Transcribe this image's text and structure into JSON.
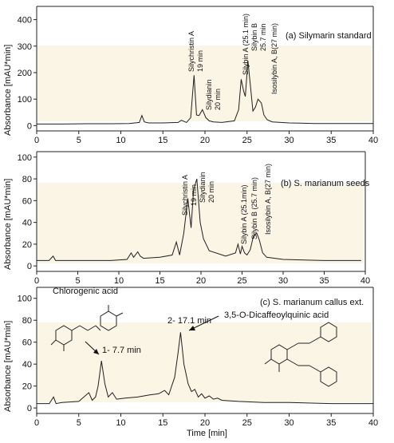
{
  "chart_data": [
    {
      "type": "line",
      "title": "(a) Silymarin standard",
      "ylabel": "Absorbance [mAU*min]",
      "xlabel": "",
      "xlim": [
        0,
        40
      ],
      "ylim": [
        -20,
        450
      ],
      "yticks": [
        0,
        100,
        200,
        300,
        400
      ],
      "xticks": [
        0,
        5,
        10,
        15,
        20,
        25,
        30,
        35,
        40
      ],
      "grid": false,
      "series": [
        {
          "x": [
            0,
            3,
            6,
            9,
            11,
            12.2,
            12.5,
            12.8,
            13.3,
            15,
            16.8,
            17.2,
            17.8,
            18.3,
            18.7,
            19.0,
            19.3,
            19.7,
            20.1,
            20.5,
            21,
            22,
            23.5,
            24.0,
            24.3,
            24.6,
            24.8,
            25.1,
            25.4,
            25.7,
            26.0,
            26.3,
            26.7,
            27.0,
            27.4,
            28,
            30,
            33,
            36,
            40
          ],
          "y": [
            6,
            6,
            7,
            7,
            8,
            12,
            38,
            14,
            10,
            10,
            12,
            20,
            12,
            30,
            190,
            40,
            38,
            60,
            30,
            18,
            14,
            12,
            18,
            60,
            175,
            130,
            110,
            245,
            150,
            55,
            70,
            100,
            85,
            40,
            22,
            14,
            10,
            8,
            8,
            8
          ]
        }
      ],
      "annotations": [
        "Silychristin A",
        "19 min",
        "Silydianin",
        "20 min",
        "Silybin A (25.1 min)",
        "Silybin B",
        "25.7 min",
        "Isosilybin A, B(27 min)"
      ]
    },
    {
      "type": "line",
      "title": "(b) S. marianum seeds",
      "ylabel": "Absorbance [mAU*min]",
      "xlabel": "",
      "xlim": [
        0,
        40
      ],
      "ylim": [
        -5,
        105
      ],
      "yticks": [
        0,
        20,
        40,
        60,
        80,
        100
      ],
      "xticks": [
        0,
        5,
        10,
        15,
        20,
        25,
        30,
        35,
        40
      ],
      "grid": false,
      "series": [
        {
          "x": [
            0,
            1,
            1.5,
            2.0,
            2.3,
            3,
            6,
            9,
            11,
            11.5,
            11.8,
            12.3,
            12.6,
            13,
            15,
            16.5,
            17.0,
            17.4,
            17.9,
            18.4,
            18.8,
            19.1,
            19.5,
            19.9,
            20.3,
            21,
            23,
            24.2,
            24.5,
            24.8,
            25.0,
            25.3,
            25.6,
            26.0,
            26.4,
            26.8,
            27.1,
            27.5,
            28,
            30,
            35,
            39.5
          ],
          "y": [
            5,
            5,
            5,
            9,
            5,
            5,
            5,
            5,
            6,
            12,
            8,
            13,
            9,
            7,
            8,
            10,
            22,
            10,
            30,
            62,
            35,
            70,
            80,
            40,
            25,
            14,
            9,
            12,
            20,
            11,
            18,
            12,
            10,
            15,
            28,
            30,
            24,
            12,
            8,
            6,
            5,
            5
          ]
        }
      ],
      "annotations": [
        "Silychristin A",
        "19 min",
        "Silydianin",
        "20 min",
        "Silybin A (25.1min)",
        "Silybin B (25.7 min)",
        "Isosilybin A, B(27 min)"
      ]
    },
    {
      "type": "line",
      "title": "(c) S. marianum callus ext.",
      "ylabel": "Absorbance [mAU*min]",
      "xlabel": "Time [min]",
      "xlim": [
        0,
        40
      ],
      "ylim": [
        -5,
        110
      ],
      "yticks": [
        0,
        20,
        40,
        60,
        80,
        100
      ],
      "xticks": [
        0,
        5,
        10,
        15,
        20,
        25,
        30,
        35,
        40
      ],
      "grid": false,
      "series": [
        {
          "x": [
            0,
            1.5,
            2.0,
            2.3,
            3,
            5,
            6.2,
            6.6,
            7.0,
            7.3,
            7.7,
            8.1,
            8.5,
            9.0,
            9.5,
            10.5,
            12,
            13.5,
            14.5,
            15.2,
            15.7,
            16.0,
            16.4,
            16.8,
            17.1,
            17.5,
            18.0,
            18.4,
            18.8,
            19.2,
            19.6,
            20.0,
            20.5,
            21.0,
            21.5,
            22,
            24,
            27,
            30,
            35,
            40
          ],
          "y": [
            4,
            4,
            10,
            4,
            5,
            6,
            14,
            7,
            10,
            20,
            43,
            22,
            10,
            14,
            8,
            9,
            10,
            12,
            13,
            16,
            12,
            19,
            28,
            50,
            69,
            40,
            22,
            15,
            17,
            10,
            13,
            9,
            11,
            8,
            9,
            7,
            6,
            5,
            5,
            4,
            4
          ]
        }
      ],
      "annotations": [
        "Chlorogenic acid",
        "1- 7.7 min",
        "2- 17.1 min",
        "3,5-O-Dicaffeoylquinic acid"
      ]
    }
  ]
}
